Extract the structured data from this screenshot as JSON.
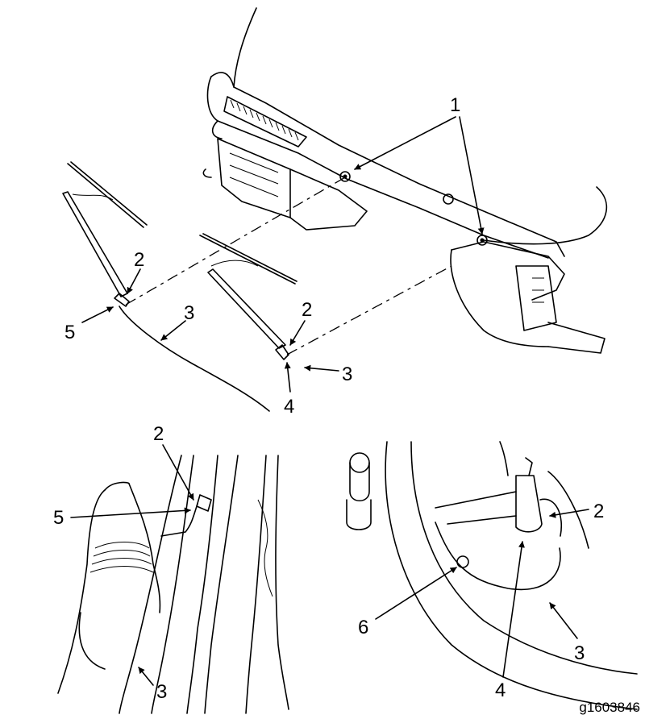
{
  "callouts": {
    "c1": "1",
    "top_left_2": "2",
    "top_left_5": "5",
    "top_left_3": "3",
    "top_right_2": "2",
    "top_right_3": "3",
    "top_right_4": "4",
    "bl_2": "2",
    "bl_5": "5",
    "bl_3": "3",
    "br_2": "2",
    "br_6": "6",
    "br_3": "3",
    "br_4": "4"
  },
  "figure_id": "g1603846"
}
